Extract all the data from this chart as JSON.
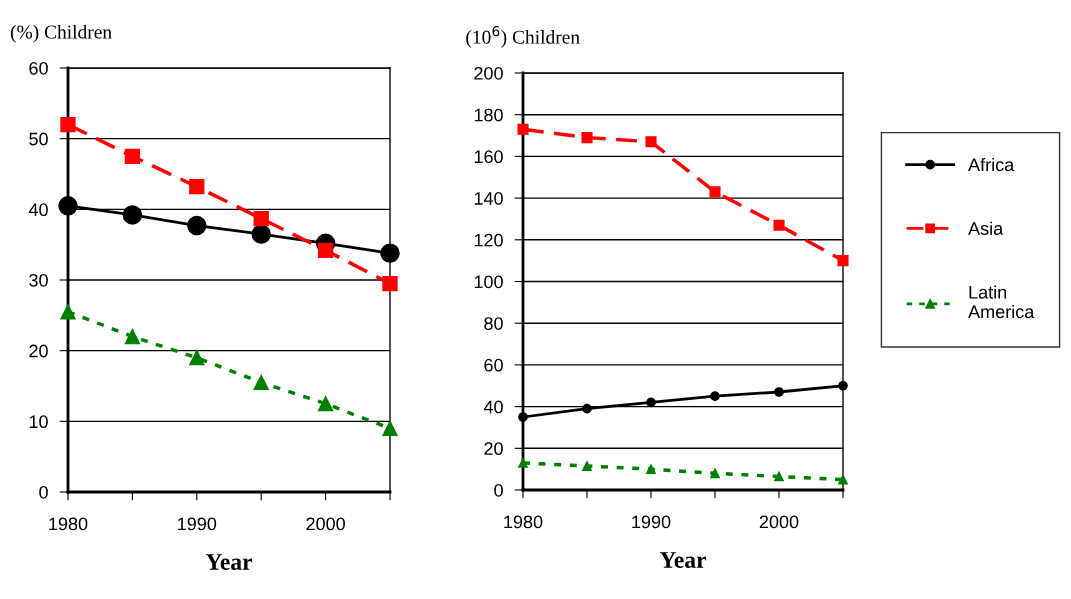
{
  "chart_data": [
    {
      "type": "line",
      "ylabel": "(%) Children",
      "xlabel": "Year",
      "x": [
        1980,
        1985,
        1990,
        1995,
        2000,
        2005
      ],
      "xlim": [
        1980,
        2005
      ],
      "xticks": [
        1980,
        {
          "value": 1985,
          "label": null
        },
        1990,
        {
          "value": 1995,
          "label": null
        },
        2000,
        {
          "value": 2005,
          "label": null
        }
      ],
      "ylim": [
        0,
        60
      ],
      "yticks": [
        0,
        10,
        20,
        30,
        40,
        50,
        60
      ],
      "grid": "y",
      "legend": false,
      "series": [
        {
          "color": "#000000",
          "marker": "circle",
          "line_style": "solid",
          "values": [
            40.5,
            39.2,
            37.7,
            36.5,
            35.2,
            33.8
          ]
        },
        {
          "color": "#ff0000",
          "marker": "square",
          "line_style": "dashed",
          "values": [
            52,
            47.5,
            43.2,
            38.7,
            34.2,
            29.5
          ]
        },
        {
          "color": "#008000",
          "marker": "triangle",
          "line_style": "dotted",
          "values": [
            25.5,
            22,
            19,
            15.5,
            12.5,
            9
          ]
        }
      ]
    },
    {
      "type": "line",
      "ylabel": "(10$^{6}$) Children",
      "xlabel": "Year",
      "x": [
        1980,
        1985,
        1990,
        1995,
        2000,
        2005
      ],
      "xlim": [
        1980,
        2005
      ],
      "xticks": [
        1980,
        {
          "value": 1985,
          "label": null
        },
        1990,
        {
          "value": 1995,
          "label": null
        },
        2000,
        {
          "value": 2005,
          "label": null
        }
      ],
      "ylim": [
        0,
        200
      ],
      "yticks": [
        0,
        20,
        40,
        60,
        80,
        100,
        120,
        140,
        160,
        180,
        200
      ],
      "grid": "y",
      "legend": "right",
      "series": [
        {
          "name": "Africa",
          "color": "#000000",
          "marker": "circle",
          "line_style": "solid",
          "values": [
            35,
            39,
            42,
            45,
            47,
            50
          ]
        },
        {
          "name": "Asia",
          "color": "#ff0000",
          "marker": "square",
          "line_style": "dashed",
          "values": [
            173,
            169,
            167,
            143,
            127,
            110
          ]
        },
        {
          "name": "Latin America",
          "color": "#008000",
          "marker": "triangle",
          "line_style": "dotted",
          "values": [
            13,
            11.5,
            10,
            8,
            6.5,
            5
          ]
        }
      ]
    }
  ]
}
